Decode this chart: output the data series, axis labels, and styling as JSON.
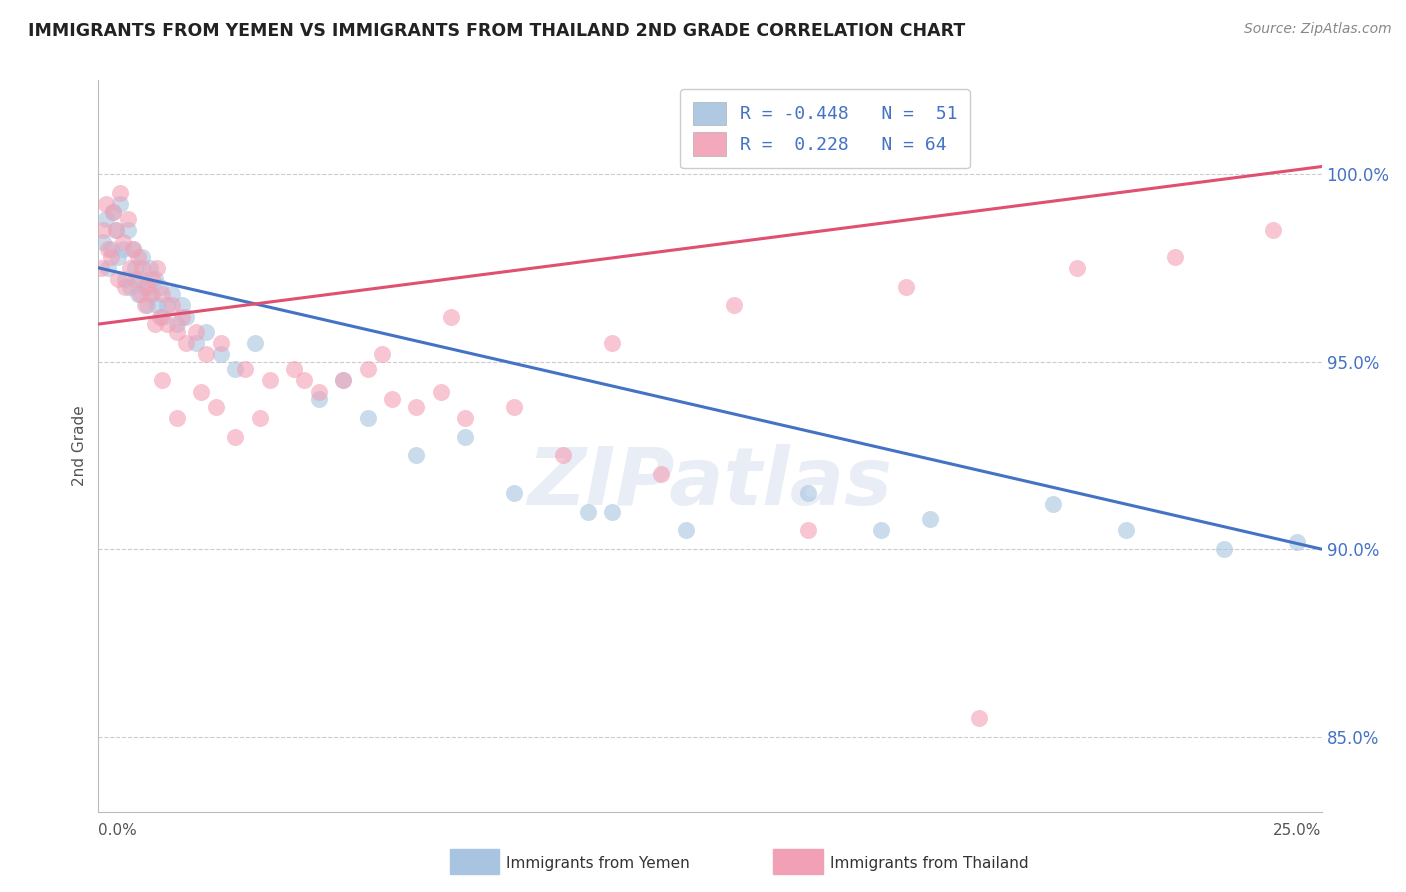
{
  "title": "IMMIGRANTS FROM YEMEN VS IMMIGRANTS FROM THAILAND 2ND GRADE CORRELATION CHART",
  "source": "Source: ZipAtlas.com",
  "ylabel": "2nd Grade",
  "xlim": [
    0.0,
    25.0
  ],
  "ylim": [
    83.0,
    102.5
  ],
  "y_ticks": [
    85.0,
    90.0,
    95.0,
    100.0
  ],
  "blue_color": "#a8c4e0",
  "pink_color": "#f2a0b5",
  "blue_line_color": "#4472C4",
  "pink_line_color": "#e05070",
  "grid_color": "#cccccc",
  "blue_line_x0": 0.0,
  "blue_line_y0": 97.5,
  "blue_line_x1": 25.0,
  "blue_line_y1": 90.0,
  "pink_line_x0": 0.0,
  "pink_line_y0": 96.0,
  "pink_line_x1": 25.0,
  "pink_line_y1": 100.2,
  "blue_scatter_x": [
    0.1,
    0.15,
    0.2,
    0.25,
    0.3,
    0.35,
    0.4,
    0.45,
    0.5,
    0.55,
    0.6,
    0.65,
    0.7,
    0.75,
    0.8,
    0.85,
    0.9,
    0.95,
    1.0,
    1.05,
    1.1,
    1.15,
    1.2,
    1.25,
    1.3,
    1.4,
    1.5,
    1.6,
    1.7,
    1.8,
    2.0,
    2.2,
    2.5,
    2.8,
    3.2,
    4.5,
    5.5,
    6.5,
    8.5,
    10.0,
    12.0,
    14.5,
    17.0,
    19.5,
    21.0,
    23.0,
    24.5,
    5.0,
    7.5,
    10.5,
    16.0
  ],
  "blue_scatter_y": [
    98.2,
    98.8,
    97.5,
    98.0,
    99.0,
    98.5,
    97.8,
    99.2,
    98.0,
    97.2,
    98.5,
    97.0,
    98.0,
    97.5,
    96.8,
    97.2,
    97.8,
    97.0,
    96.5,
    97.5,
    96.8,
    97.2,
    96.5,
    97.0,
    96.2,
    96.5,
    96.8,
    96.0,
    96.5,
    96.2,
    95.5,
    95.8,
    95.2,
    94.8,
    95.5,
    94.0,
    93.5,
    92.5,
    91.5,
    91.0,
    90.5,
    91.5,
    90.8,
    91.2,
    90.5,
    90.0,
    90.2,
    94.5,
    93.0,
    91.0,
    90.5
  ],
  "pink_scatter_x": [
    0.05,
    0.1,
    0.15,
    0.2,
    0.25,
    0.3,
    0.35,
    0.4,
    0.45,
    0.5,
    0.55,
    0.6,
    0.65,
    0.7,
    0.75,
    0.8,
    0.85,
    0.9,
    0.95,
    1.0,
    1.05,
    1.1,
    1.15,
    1.2,
    1.25,
    1.3,
    1.4,
    1.5,
    1.6,
    1.7,
    1.8,
    2.0,
    2.2,
    2.5,
    3.0,
    3.5,
    4.0,
    4.5,
    5.0,
    5.5,
    6.0,
    6.5,
    7.0,
    7.5,
    8.5,
    10.5,
    13.0,
    16.5,
    20.0,
    24.0,
    1.3,
    1.6,
    2.1,
    2.4,
    2.8,
    3.3,
    4.2,
    5.8,
    7.2,
    9.5,
    11.5,
    14.5,
    18.0,
    22.0
  ],
  "pink_scatter_y": [
    97.5,
    98.5,
    99.2,
    98.0,
    97.8,
    99.0,
    98.5,
    97.2,
    99.5,
    98.2,
    97.0,
    98.8,
    97.5,
    98.0,
    97.2,
    97.8,
    96.8,
    97.5,
    96.5,
    97.0,
    96.8,
    97.2,
    96.0,
    97.5,
    96.2,
    96.8,
    96.0,
    96.5,
    95.8,
    96.2,
    95.5,
    95.8,
    95.2,
    95.5,
    94.8,
    94.5,
    94.8,
    94.2,
    94.5,
    94.8,
    94.0,
    93.8,
    94.2,
    93.5,
    93.8,
    95.5,
    96.5,
    97.0,
    97.5,
    98.5,
    94.5,
    93.5,
    94.2,
    93.8,
    93.0,
    93.5,
    94.5,
    95.2,
    96.2,
    92.5,
    92.0,
    90.5,
    85.5,
    97.8
  ]
}
